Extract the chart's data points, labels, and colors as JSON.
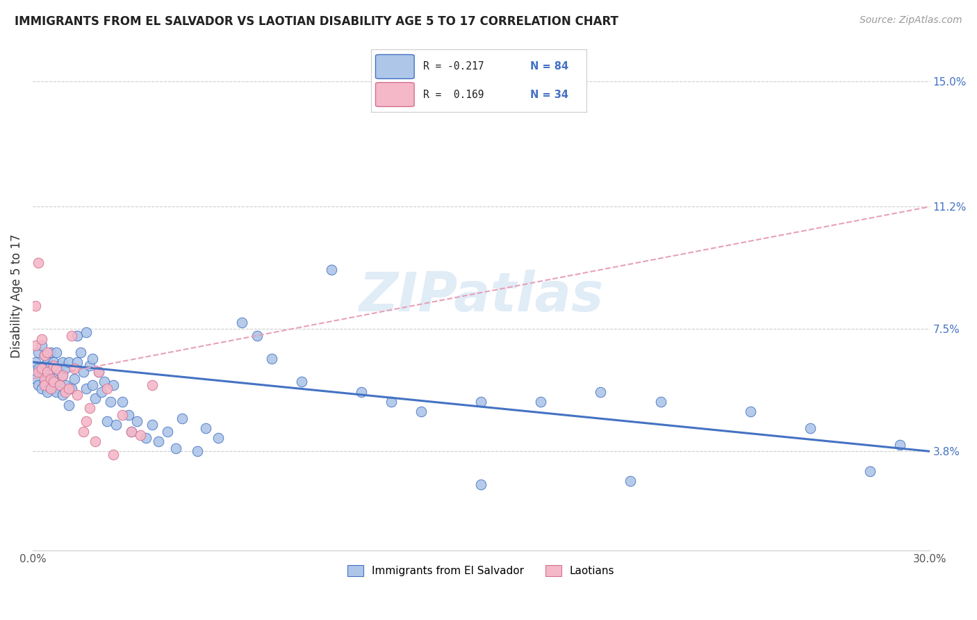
{
  "title": "IMMIGRANTS FROM EL SALVADOR VS LAOTIAN DISABILITY AGE 5 TO 17 CORRELATION CHART",
  "source": "Source: ZipAtlas.com",
  "ylabel": "Disability Age 5 to 17",
  "watermark": "ZIPatlas",
  "xlim": [
    0.0,
    0.3
  ],
  "ylim": [
    0.008,
    0.162
  ],
  "right_yticks": [
    0.038,
    0.075,
    0.112,
    0.15
  ],
  "right_yticklabels": [
    "3.8%",
    "7.5%",
    "11.2%",
    "15.0%"
  ],
  "blue_color": "#aec6e8",
  "pink_color": "#f4b8c8",
  "trend_blue": "#4472c4",
  "trend_pink": "#e8a0b8",
  "blue_scatter_x": [
    0.001,
    0.001,
    0.002,
    0.002,
    0.002,
    0.003,
    0.003,
    0.003,
    0.004,
    0.004,
    0.004,
    0.005,
    0.005,
    0.005,
    0.005,
    0.006,
    0.006,
    0.006,
    0.007,
    0.007,
    0.007,
    0.007,
    0.008,
    0.008,
    0.008,
    0.009,
    0.009,
    0.01,
    0.01,
    0.01,
    0.011,
    0.011,
    0.012,
    0.012,
    0.013,
    0.014,
    0.015,
    0.015,
    0.016,
    0.017,
    0.018,
    0.018,
    0.019,
    0.02,
    0.02,
    0.021,
    0.022,
    0.023,
    0.024,
    0.025,
    0.026,
    0.027,
    0.028,
    0.03,
    0.032,
    0.033,
    0.035,
    0.038,
    0.04,
    0.042,
    0.045,
    0.048,
    0.05,
    0.055,
    0.058,
    0.062,
    0.07,
    0.075,
    0.08,
    0.09,
    0.1,
    0.11,
    0.12,
    0.13,
    0.15,
    0.17,
    0.19,
    0.21,
    0.24,
    0.26,
    0.15,
    0.2,
    0.28,
    0.29
  ],
  "blue_scatter_y": [
    0.065,
    0.06,
    0.063,
    0.058,
    0.068,
    0.062,
    0.057,
    0.07,
    0.059,
    0.064,
    0.067,
    0.061,
    0.056,
    0.063,
    0.066,
    0.059,
    0.064,
    0.068,
    0.057,
    0.062,
    0.065,
    0.06,
    0.056,
    0.063,
    0.068,
    0.059,
    0.064,
    0.055,
    0.061,
    0.065,
    0.058,
    0.063,
    0.052,
    0.065,
    0.057,
    0.06,
    0.073,
    0.065,
    0.068,
    0.062,
    0.074,
    0.057,
    0.064,
    0.058,
    0.066,
    0.054,
    0.062,
    0.056,
    0.059,
    0.047,
    0.053,
    0.058,
    0.046,
    0.053,
    0.049,
    0.044,
    0.047,
    0.042,
    0.046,
    0.041,
    0.044,
    0.039,
    0.048,
    0.038,
    0.045,
    0.042,
    0.077,
    0.073,
    0.066,
    0.059,
    0.093,
    0.056,
    0.053,
    0.05,
    0.053,
    0.053,
    0.056,
    0.053,
    0.05,
    0.045,
    0.028,
    0.029,
    0.032,
    0.04
  ],
  "pink_scatter_x": [
    0.001,
    0.001,
    0.002,
    0.002,
    0.003,
    0.003,
    0.004,
    0.004,
    0.004,
    0.005,
    0.005,
    0.006,
    0.006,
    0.007,
    0.007,
    0.008,
    0.009,
    0.01,
    0.011,
    0.012,
    0.013,
    0.014,
    0.015,
    0.017,
    0.018,
    0.019,
    0.021,
    0.022,
    0.025,
    0.027,
    0.03,
    0.033,
    0.036,
    0.04
  ],
  "pink_scatter_y": [
    0.082,
    0.07,
    0.095,
    0.062,
    0.072,
    0.063,
    0.06,
    0.067,
    0.058,
    0.062,
    0.068,
    0.06,
    0.057,
    0.064,
    0.059,
    0.063,
    0.058,
    0.061,
    0.056,
    0.057,
    0.073,
    0.063,
    0.055,
    0.044,
    0.047,
    0.051,
    0.041,
    0.062,
    0.057,
    0.037,
    0.049,
    0.044,
    0.043,
    0.058
  ],
  "blue_trend_y_start": 0.065,
  "blue_trend_y_end": 0.038,
  "pink_trend_y_start": 0.06,
  "pink_trend_y_end": 0.112
}
